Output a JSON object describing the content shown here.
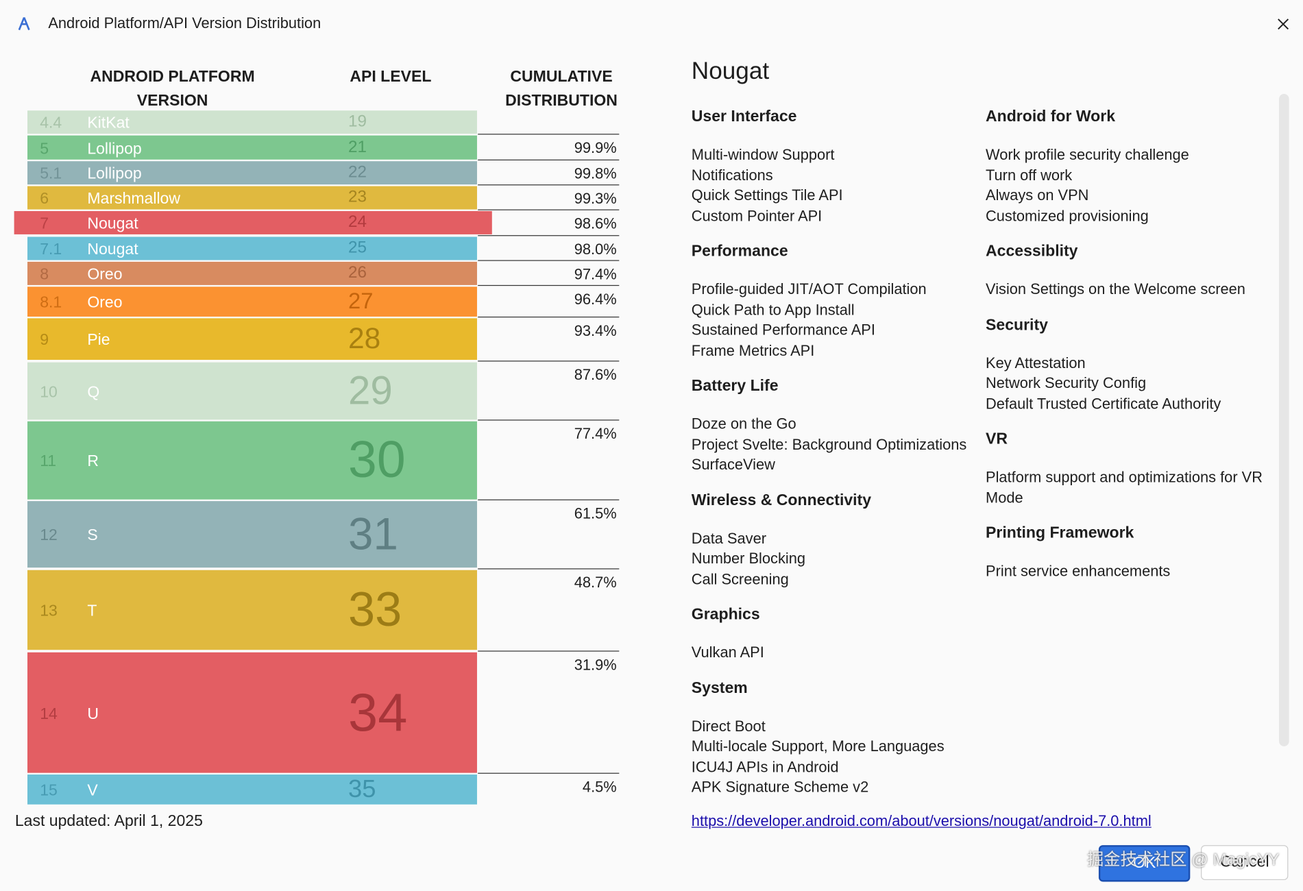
{
  "dialog": {
    "title": "Android Platform/API Version Distribution"
  },
  "table": {
    "headers": [
      "ANDROID PLATFORM VERSION",
      "API LEVEL",
      "CUMULATIVE DISTRIBUTION"
    ],
    "rows": [
      {
        "version": "4.4",
        "name": "KitKat",
        "api": "19"
      },
      {
        "version": "5",
        "name": "Lollipop",
        "api": "21",
        "cumulative": "99.9%"
      },
      {
        "version": "5.1",
        "name": "Lollipop",
        "api": "22",
        "cumulative": "99.8%"
      },
      {
        "version": "6",
        "name": "Marshmallow",
        "api": "23",
        "cumulative": "99.3%"
      },
      {
        "version": "7",
        "name": "Nougat",
        "api": "24",
        "cumulative": "98.6%"
      },
      {
        "version": "7.1",
        "name": "Nougat",
        "api": "25",
        "cumulative": "98.0%"
      },
      {
        "version": "8",
        "name": "Oreo",
        "api": "26",
        "cumulative": "97.4%"
      },
      {
        "version": "8.1",
        "name": "Oreo",
        "api": "27",
        "cumulative": "96.4%"
      },
      {
        "version": "9",
        "name": "Pie",
        "api": "28",
        "cumulative": "93.4%"
      },
      {
        "version": "10",
        "name": "Q",
        "api": "29",
        "cumulative": "87.6%"
      },
      {
        "version": "11",
        "name": "R",
        "api": "30",
        "cumulative": "77.4%"
      },
      {
        "version": "12",
        "name": "S",
        "api": "31",
        "cumulative": "61.5%"
      },
      {
        "version": "13",
        "name": "T",
        "api": "33",
        "cumulative": "48.7%"
      },
      {
        "version": "14",
        "name": "U",
        "api": "34",
        "cumulative": "31.9%"
      },
      {
        "version": "15",
        "name": "V",
        "api": "35",
        "cumulative": "4.5%"
      }
    ],
    "footer": "Last updated: April 1, 2025"
  },
  "details": {
    "title": "Nougat",
    "columns": [
      [
        {
          "heading": "User Interface",
          "items": [
            "Multi-window Support",
            "Notifications",
            "Quick Settings Tile API",
            "Custom Pointer API"
          ]
        },
        {
          "heading": "Performance",
          "items": [
            "Profile-guided JIT/AOT Compilation",
            "Quick Path to App Install",
            "Sustained Performance API",
            "Frame Metrics API"
          ]
        },
        {
          "heading": "Battery Life",
          "items": [
            "Doze on the Go",
            "Project Svelte: Background Optimizations",
            "SurfaceView"
          ]
        },
        {
          "heading": "Wireless & Connectivity",
          "items": [
            "Data Saver",
            "Number Blocking",
            "Call Screening"
          ]
        },
        {
          "heading": "Graphics",
          "items": [
            "Vulkan API"
          ]
        },
        {
          "heading": "System",
          "items": [
            "Direct Boot",
            "Multi-locale Support, More Languages",
            "ICU4J APIs in Android",
            "APK Signature Scheme v2"
          ]
        }
      ],
      [
        {
          "heading": "Android for Work",
          "items": [
            "Work profile security challenge",
            "Turn off work",
            "Always on VPN",
            "Customized provisioning"
          ]
        },
        {
          "heading": "Accessiblity",
          "items": [
            "Vision Settings on the Welcome screen"
          ]
        },
        {
          "heading": "Security",
          "items": [
            "Key Attestation",
            "Network Security Config",
            "Default Trusted Certificate Authority"
          ]
        },
        {
          "heading": "VR",
          "items": [
            "Platform support and optimizations for VR Mode"
          ]
        },
        {
          "heading": "Printing Framework",
          "items": [
            "Print service enhancements"
          ]
        }
      ]
    ],
    "link": "https://developer.android.com/about/versions/nougat/android-7.0.html"
  },
  "buttons": [
    "OK",
    "Cancel"
  ],
  "watermark": "掘金技术社区 @ MagicYY"
}
